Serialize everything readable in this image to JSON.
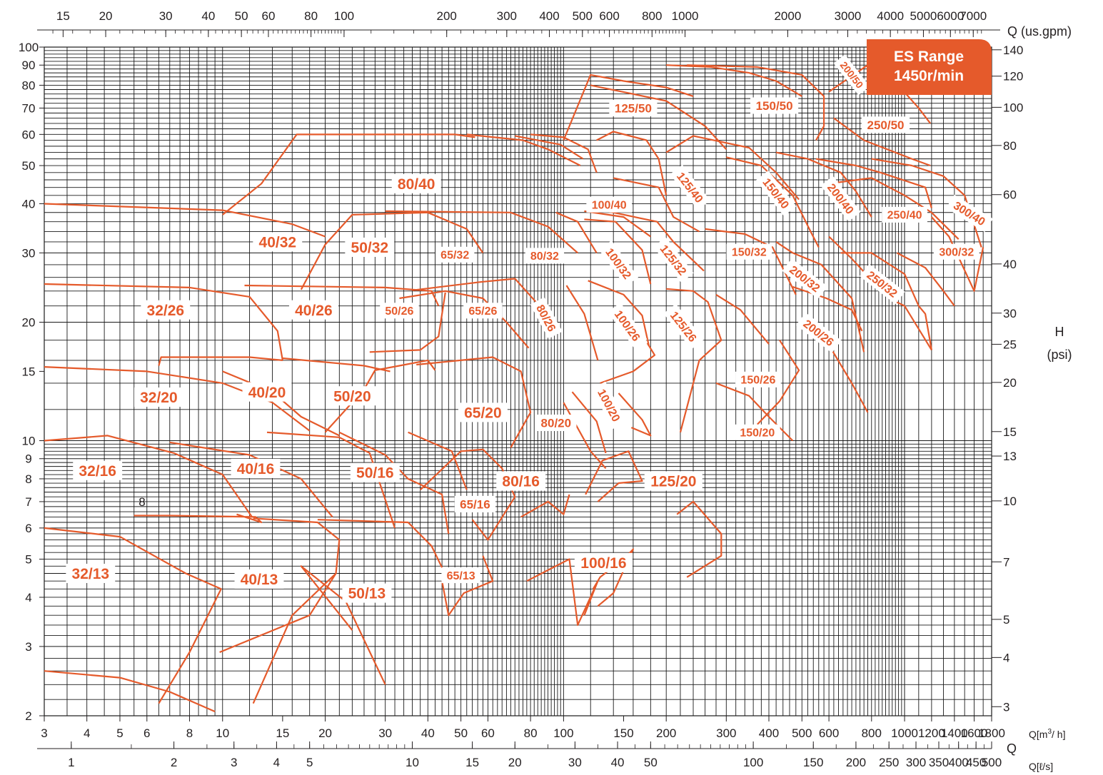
{
  "chart_data": {
    "type": "performance-chart",
    "badge": {
      "line1": "ES Range",
      "line2": "1450r/min",
      "color": "#e55a2b"
    },
    "accent_color": "#e55a2b",
    "grid": true,
    "axes": {
      "x_m3h": {
        "label": "Q[m3/ h]",
        "label_main": "Q[m",
        "label_sup": "3",
        "label_tail": "/ h]",
        "scale": "log",
        "range": [
          3,
          1800
        ],
        "ticks": [
          "3",
          "4",
          "5",
          "6",
          "8",
          "10",
          "15",
          "20",
          "30",
          "40",
          "50",
          "60",
          "80",
          "100",
          "150",
          "200",
          "300",
          "400",
          "500",
          "600",
          "800",
          "1000",
          "1200",
          "1400",
          "1600",
          "1800"
        ]
      },
      "x_ls": {
        "label": "Q[ℓ/s]",
        "name": "Q",
        "scale": "log",
        "ticks": [
          "1",
          "2",
          "3",
          "4",
          "5",
          "10",
          "15",
          "20",
          "30",
          "40",
          "50",
          "100",
          "150",
          "200",
          "250",
          "300",
          "350",
          "400",
          "450",
          "500"
        ]
      },
      "x_usgpm": {
        "label": "Q  (us.gpm)",
        "scale": "log",
        "ticks": [
          "15",
          "20",
          "30",
          "40",
          "50",
          "60",
          "80",
          "100",
          "200",
          "300",
          "400",
          "500",
          "600",
          "800",
          "1000",
          "2000",
          "3000",
          "4000",
          "5000",
          "6000",
          "7000"
        ]
      },
      "y_m": {
        "scale": "log",
        "range": [
          2,
          100
        ],
        "ticks": [
          "2",
          "3",
          "4",
          "5",
          "6",
          "7",
          "8",
          "9",
          "10",
          "15",
          "20",
          "30",
          "40",
          "50",
          "60",
          "70",
          "80",
          "90",
          "100"
        ]
      },
      "y_psi": {
        "label_name": "H",
        "label_unit": "(psi)",
        "scale": "log",
        "ticks": [
          "3",
          "4",
          "5",
          "7",
          "10",
          "13",
          "15",
          "20",
          "25",
          "30",
          "40",
          "60",
          "80",
          "100",
          "120",
          "140"
        ]
      }
    },
    "stray_label": "8",
    "pump_models": [
      "32/13",
      "32/16",
      "32/20",
      "32/26",
      "40/13",
      "40/16",
      "40/20",
      "40/26",
      "40/32",
      "50/13",
      "50/16",
      "50/20",
      "50/26",
      "50/32",
      "65/13",
      "65/16",
      "65/20",
      "65/26",
      "65/32",
      "80/16",
      "80/20",
      "80/26",
      "80/32",
      "80/40",
      "100/16",
      "100/20",
      "100/26",
      "100/32",
      "100/40",
      "125/20",
      "125/26",
      "125/32",
      "125/40",
      "125/50",
      "150/20",
      "150/26",
      "150/32",
      "150/40",
      "150/50",
      "200/26",
      "200/32",
      "200/40",
      "200/50",
      "250/32",
      "250/40",
      "250/50",
      "300/32",
      "300/40"
    ]
  }
}
